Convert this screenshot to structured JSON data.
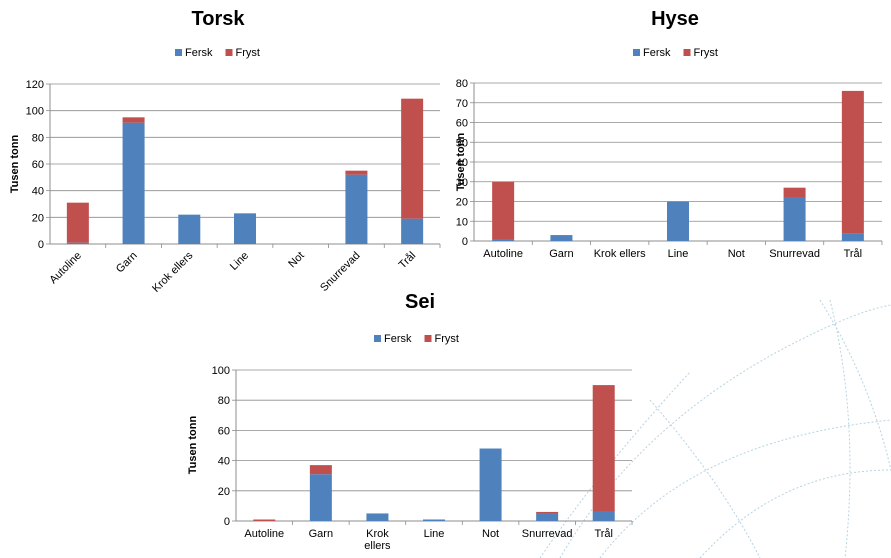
{
  "colors": {
    "fersk": "#4f81bd",
    "fryst": "#c0504d",
    "gridline": "#8c8c8c",
    "axis": "#8c8c8c",
    "watermark": "#b7d3df"
  },
  "chart_data": [
    {
      "type": "bar",
      "stacked": true,
      "title": "Torsk",
      "ylabel": "Tusen tonn",
      "xlabel": "",
      "categories": [
        "Autoline",
        "Garn",
        "Krok ellers",
        "Line",
        "Not",
        "Snurrevad",
        "Trål"
      ],
      "series": [
        {
          "name": "Fersk",
          "values": [
            1,
            91,
            22,
            23,
            0,
            52,
            19
          ]
        },
        {
          "name": "Fryst",
          "values": [
            30,
            4,
            0,
            0,
            0,
            3,
            90
          ]
        }
      ],
      "ylim": [
        0,
        120
      ],
      "yticks": [
        0,
        20,
        40,
        60,
        80,
        100,
        120
      ],
      "legend": "top",
      "grid": true,
      "xtick_rotation": "diagonal"
    },
    {
      "type": "bar",
      "stacked": true,
      "title": "Hyse",
      "ylabel": "Tusen tonn",
      "xlabel": "",
      "categories": [
        "Autoline",
        "Garn",
        "Krok ellers",
        "Line",
        "Not",
        "Snurrevad",
        "Trål"
      ],
      "series": [
        {
          "name": "Fersk",
          "values": [
            1,
            3,
            0,
            20,
            0,
            22,
            4
          ]
        },
        {
          "name": "Fryst",
          "values": [
            29,
            0,
            0,
            0,
            0,
            5,
            72
          ]
        }
      ],
      "ylim": [
        0,
        80
      ],
      "yticks": [
        0,
        10,
        20,
        30,
        40,
        50,
        60,
        70,
        80
      ],
      "legend": "top",
      "grid": true,
      "xtick_rotation": "none"
    },
    {
      "type": "bar",
      "stacked": true,
      "title": "Sei",
      "ylabel": "Tusen tonn",
      "xlabel": "",
      "categories": [
        "Autoline",
        "Garn",
        "Krok ellers",
        "Line",
        "Not",
        "Snurrevad",
        "Trål"
      ],
      "series": [
        {
          "name": "Fersk",
          "values": [
            0,
            31,
            5,
            1,
            48,
            5,
            6
          ]
        },
        {
          "name": "Fryst",
          "values": [
            1,
            6,
            0,
            0,
            0,
            1,
            84
          ]
        }
      ],
      "ylim": [
        0,
        100
      ],
      "yticks": [
        0,
        20,
        40,
        60,
        80,
        100
      ],
      "legend": "top",
      "grid": true,
      "xtick_rotation": "none"
    }
  ]
}
